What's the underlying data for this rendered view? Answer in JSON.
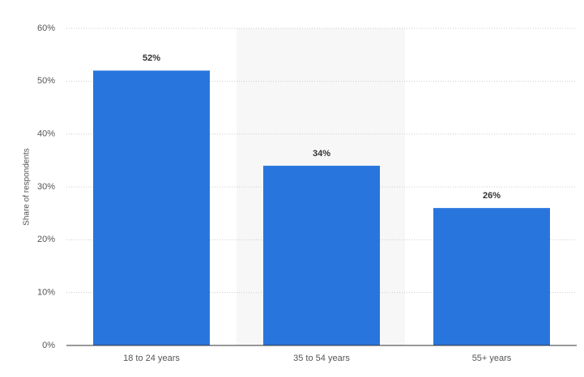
{
  "chart_data": {
    "type": "bar",
    "y_label": "Share of respondents",
    "categories": [
      "18 to 24 years",
      "35 to 54 years",
      "55+ years"
    ],
    "values": [
      52,
      34,
      26
    ],
    "value_labels": [
      "52%",
      "34%",
      "26%"
    ],
    "color": "#2876dd",
    "ylim": [
      0,
      60
    ],
    "yticks": [
      {
        "value": 0,
        "label": "0%"
      },
      {
        "value": 10,
        "label": "10%"
      },
      {
        "value": 20,
        "label": "20%"
      },
      {
        "value": 30,
        "label": "30%"
      },
      {
        "value": 40,
        "label": "40%"
      },
      {
        "value": 50,
        "label": "50%"
      },
      {
        "value": 60,
        "label": "60%"
      }
    ],
    "grid": true
  }
}
